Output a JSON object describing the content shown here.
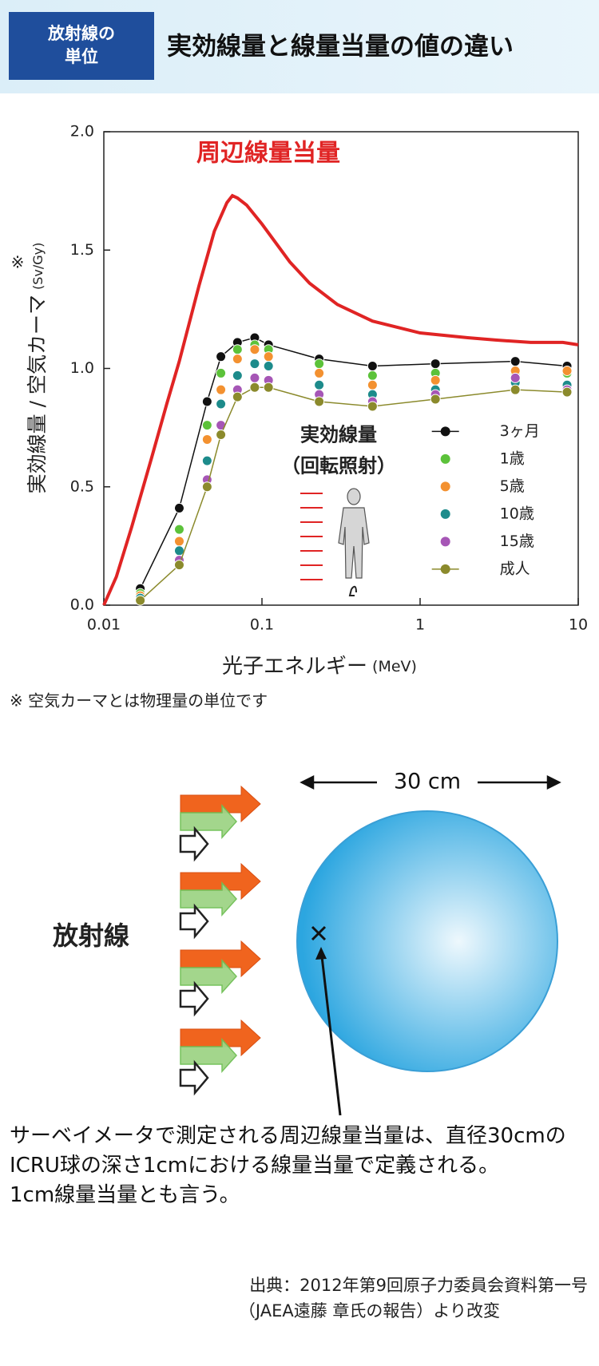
{
  "header": {
    "badge_lines": [
      "放射線の",
      "単位"
    ],
    "title": "実効線量と線量当量の値の違い"
  },
  "chart_data": {
    "type": "line",
    "xscale": "log",
    "xlim": [
      0.01,
      10
    ],
    "xticks": [
      0.01,
      0.1,
      1,
      10
    ],
    "ylim": [
      0,
      2
    ],
    "yticks": [
      {
        "value": 0,
        "label": "0.0"
      },
      {
        "value": 0.5,
        "label": "0.5"
      },
      {
        "value": 1,
        "label": "1.0"
      },
      {
        "value": 1.5,
        "label": "1.5"
      },
      {
        "value": 2,
        "label": "2.0"
      }
    ],
    "ylabel": "実効線量 / 空気カーマ",
    "yunit": "(Sv/Gy)",
    "ylabel_mark": "※",
    "xlabel": "光子エネルギー",
    "xunit": "(MeV)",
    "legend": "lower right",
    "legend_title": [
      "実効線量",
      "（回転照射）"
    ],
    "series": [
      {
        "name": "周辺線量当量",
        "color": "#e02424",
        "line": true,
        "marker": false,
        "legend": false,
        "x": [
          0.01,
          0.012,
          0.015,
          0.02,
          0.025,
          0.03,
          0.04,
          0.05,
          0.06,
          0.065,
          0.07,
          0.08,
          0.1,
          0.15,
          0.2,
          0.3,
          0.5,
          1,
          2,
          3,
          5,
          8,
          10
        ],
        "values": [
          0,
          0.12,
          0.33,
          0.62,
          0.85,
          1.03,
          1.35,
          1.58,
          1.7,
          1.73,
          1.72,
          1.69,
          1.61,
          1.45,
          1.36,
          1.27,
          1.2,
          1.15,
          1.13,
          1.12,
          1.11,
          1.11,
          1.1
        ]
      },
      {
        "name": "3ヶ月",
        "color": "#111111",
        "line": true,
        "marker": true,
        "legend": true,
        "x": [
          0.017,
          0.03,
          0.045,
          0.055,
          0.07,
          0.09,
          0.11,
          0.23,
          0.5,
          1.25,
          4,
          8.5
        ],
        "values": [
          0.07,
          0.41,
          0.86,
          1.05,
          1.11,
          1.13,
          1.1,
          1.04,
          1.01,
          1.02,
          1.03,
          1.01
        ]
      },
      {
        "name": "1歳",
        "color": "#5cc23a",
        "line": false,
        "marker": true,
        "legend": true,
        "x": [
          0.017,
          0.03,
          0.045,
          0.055,
          0.07,
          0.09,
          0.11,
          0.23,
          0.5,
          1.25,
          4,
          8.5
        ],
        "values": [
          0.05,
          0.32,
          0.76,
          0.98,
          1.08,
          1.1,
          1.08,
          1.02,
          0.97,
          0.98,
          0.98,
          0.98
        ]
      },
      {
        "name": "5歳",
        "color": "#f39130",
        "line": false,
        "marker": true,
        "legend": true,
        "x": [
          0.017,
          0.03,
          0.045,
          0.055,
          0.07,
          0.09,
          0.11,
          0.23,
          0.5,
          1.25,
          4,
          8.5
        ],
        "values": [
          0.04,
          0.27,
          0.7,
          0.91,
          1.04,
          1.08,
          1.05,
          0.98,
          0.93,
          0.95,
          0.99,
          0.99
        ]
      },
      {
        "name": "10歳",
        "color": "#1d8b8b",
        "line": false,
        "marker": true,
        "legend": true,
        "x": [
          0.017,
          0.03,
          0.045,
          0.055,
          0.07,
          0.09,
          0.11,
          0.23,
          0.5,
          1.25,
          4,
          8.5
        ],
        "values": [
          0.03,
          0.23,
          0.61,
          0.85,
          0.97,
          1.02,
          1.01,
          0.93,
          0.89,
          0.91,
          0.94,
          0.93
        ]
      },
      {
        "name": "15歳",
        "color": "#a656b6",
        "line": false,
        "marker": true,
        "legend": true,
        "x": [
          0.017,
          0.03,
          0.045,
          0.055,
          0.07,
          0.09,
          0.11,
          0.23,
          0.5,
          1.25,
          4,
          8.5
        ],
        "values": [
          0.02,
          0.19,
          0.53,
          0.76,
          0.91,
          0.96,
          0.95,
          0.89,
          0.86,
          0.89,
          0.96,
          0.91
        ]
      },
      {
        "name": "成人",
        "color": "#8b8a2c",
        "line": true,
        "marker": true,
        "legend": true,
        "x": [
          0.017,
          0.03,
          0.045,
          0.055,
          0.07,
          0.09,
          0.11,
          0.23,
          0.5,
          1.25,
          4,
          8.5
        ],
        "values": [
          0.02,
          0.17,
          0.5,
          0.72,
          0.88,
          0.92,
          0.92,
          0.86,
          0.84,
          0.87,
          0.91,
          0.9
        ]
      }
    ]
  },
  "note": "※ 空気カーマとは物理量の単位です",
  "diagram": {
    "width_label": "30 cm",
    "source_label": "放射線"
  },
  "description": [
    "サーベイメータで測定される周辺線量当量は、直径30cmのICRU球の深さ1cmにおける線量当量で定義される。",
    "1cm線量当量とも言う。"
  ],
  "source": [
    "出典：2012年第9回原子力委員会資料第一号",
    "（JAEA遠藤 章氏の報告）より改変"
  ]
}
